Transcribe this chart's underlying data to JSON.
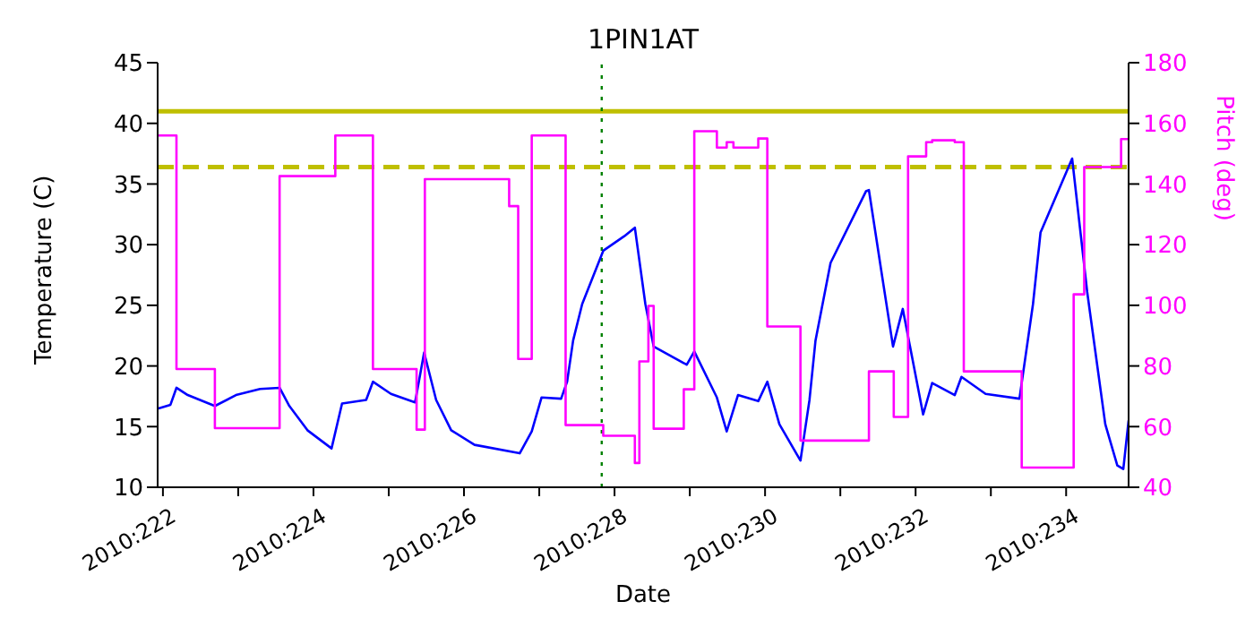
{
  "chart_data": {
    "type": "line",
    "title": "1PIN1AT",
    "xlabel": "Date",
    "ylabel": "Temperature (C)",
    "y2label": "Pitch (deg)",
    "xlim": [
      "2010-08-09T22:19",
      "2010-08-22T19:55"
    ],
    "xticks": [
      {
        "value": "2010-08-10",
        "label": "2010:222"
      },
      {
        "value": "2010-08-11",
        "label": null
      },
      {
        "value": "2010-08-12",
        "label": "2010:224"
      },
      {
        "value": "2010-08-13",
        "label": null
      },
      {
        "value": "2010-08-14",
        "label": "2010:226"
      },
      {
        "value": "2010-08-15",
        "label": null
      },
      {
        "value": "2010-08-16",
        "label": "2010:228"
      },
      {
        "value": "2010-08-17",
        "label": null
      },
      {
        "value": "2010-08-18",
        "label": "2010:230"
      },
      {
        "value": "2010-08-19",
        "label": null
      },
      {
        "value": "2010-08-20",
        "label": "2010:232"
      },
      {
        "value": "2010-08-21",
        "label": null
      },
      {
        "value": "2010-08-22",
        "label": "2010:234"
      }
    ],
    "ylim": [
      10,
      45
    ],
    "yticks": [
      10,
      15,
      20,
      25,
      30,
      35,
      40,
      45
    ],
    "y2lim": [
      40,
      180
    ],
    "y2ticks": [
      40,
      60,
      80,
      100,
      120,
      140,
      160,
      180
    ],
    "grid": false,
    "legend": false,
    "marker": "none",
    "series": [
      {
        "type": "line",
        "color": "#0000ff",
        "line_style": "solid",
        "x": [
          "2010-08-09T22:34",
          "2010-08-10T02:24",
          "2010-08-10T04:19",
          "2010-08-10T07:55",
          "2010-08-10T16:34",
          "2010-08-10T23:17",
          "2010-08-11T06:58",
          "2010-08-11T13:12",
          "2010-08-11T16:19",
          "2010-08-11T22:05",
          "2010-08-12T05:46",
          "2010-08-12T09:07",
          "2010-08-12T16:48",
          "2010-08-12T18:58",
          "2010-08-13T00:43",
          "2010-08-13T08:24",
          "2010-08-13T11:17",
          "2010-08-13T15:07",
          "2010-08-13T19:55",
          "2010-08-14T03:22",
          "2010-08-14T17:46",
          "2010-08-14T21:36",
          "2010-08-15T00:43",
          "2010-08-15T06:58",
          "2010-08-15T08:53",
          "2010-08-15T10:48",
          "2010-08-15T13:41",
          "2010-08-15T20:24",
          "2010-08-16T03:07",
          "2010-08-16T06:29",
          "2010-08-16T09:50",
          "2010-08-16T12:29",
          "2010-08-16T23:02",
          "2010-08-17T01:26",
          "2010-08-17T08:38",
          "2010-08-17T11:46",
          "2010-08-17T15:22",
          "2010-08-17T21:50",
          "2010-08-18T00:43",
          "2010-08-18T04:34",
          "2010-08-18T11:17",
          "2010-08-18T14:10",
          "2010-08-18T16:05",
          "2010-08-18T20:53",
          "2010-08-19T08:10",
          "2010-08-19T09:07",
          "2010-08-19T12:58",
          "2010-08-19T16:48",
          "2010-08-19T19:55",
          "2010-08-20T02:24",
          "2010-08-20T05:17",
          "2010-08-20T12:29",
          "2010-08-20T14:38",
          "2010-08-20T22:19",
          "2010-08-21T09:07",
          "2010-08-21T13:26",
          "2010-08-21T15:50",
          "2010-08-22T01:55",
          "2010-08-22T06:43",
          "2010-08-22T12:29",
          "2010-08-22T16:19",
          "2010-08-22T18:14",
          "2010-08-22T19:55"
        ],
        "values": [
          16.5,
          16.8,
          18.2,
          17.6,
          16.7,
          17.6,
          18.1,
          18.2,
          16.7,
          14.7,
          13.2,
          16.9,
          17.2,
          18.7,
          17.7,
          17,
          21.1,
          17.2,
          14.7,
          13.5,
          12.8,
          14.6,
          17.4,
          17.3,
          18.7,
          22.1,
          25.1,
          29.5,
          30.7,
          31.4,
          25.1,
          21.6,
          20.1,
          21.2,
          17.4,
          14.6,
          17.6,
          17.1,
          18.7,
          15.2,
          12.2,
          17.2,
          22.1,
          28.5,
          34.4,
          34.5,
          28,
          21.6,
          24.7,
          16,
          18.6,
          17.6,
          19.1,
          17.7,
          17.3,
          25.1,
          31,
          37.1,
          26.1,
          15.2,
          11.8,
          11.5,
          15.5
        ]
      },
      {
        "type": "step",
        "axis": "y2",
        "color": "#ff00ff",
        "line_style": "solid",
        "x": [
          "2010-08-09T22:34",
          "2010-08-10T04:19",
          "2010-08-10T16:34",
          "2010-08-11T13:12",
          "2010-08-12T06:58",
          "2010-08-12T18:58",
          "2010-08-13T08:53",
          "2010-08-13T11:31",
          "2010-08-14T14:24",
          "2010-08-14T17:17",
          "2010-08-14T21:36",
          "2010-08-15T08:24",
          "2010-08-15T20:24",
          "2010-08-16T06:29",
          "2010-08-16T07:55",
          "2010-08-16T10:48",
          "2010-08-16T12:29",
          "2010-08-16T22:05",
          "2010-08-17T01:26",
          "2010-08-17T08:38",
          "2010-08-17T11:46",
          "2010-08-17T13:55",
          "2010-08-17T21:50",
          "2010-08-18T00:43",
          "2010-08-18T11:17",
          "2010-08-19T09:07",
          "2010-08-19T17:02",
          "2010-08-19T21:36",
          "2010-08-20T03:22",
          "2010-08-20T05:17",
          "2010-08-20T12:29",
          "2010-08-20T15:22",
          "2010-08-21T09:50",
          "2010-08-22T02:24",
          "2010-08-22T05:46",
          "2010-08-22T17:31",
          "2010-08-22T19:55"
        ],
        "values": [
          156,
          79,
          59.5,
          142.6,
          156,
          79,
          59,
          141.6,
          132.7,
          82.3,
          156,
          60.5,
          57,
          48,
          81.5,
          99.8,
          59.3,
          72.3,
          157.4,
          152,
          153.8,
          152,
          155,
          93,
          55.4,
          78.2,
          63.2,
          149.1,
          153.8,
          154.4,
          153.8,
          78.2,
          46.5,
          103.6,
          145.6,
          154.8,
          154.8
        ]
      }
    ],
    "ref_lines": [
      {
        "axis": "y",
        "value": 41,
        "color": "#bfbf00",
        "line_style": "solid"
      },
      {
        "axis": "y",
        "value": 36.4,
        "color": "#bfbf00",
        "line_style": "dashed"
      },
      {
        "axis": "x",
        "value": "2010-08-15T19:55",
        "color": "#008000",
        "line_style": "dotted"
      }
    ]
  }
}
